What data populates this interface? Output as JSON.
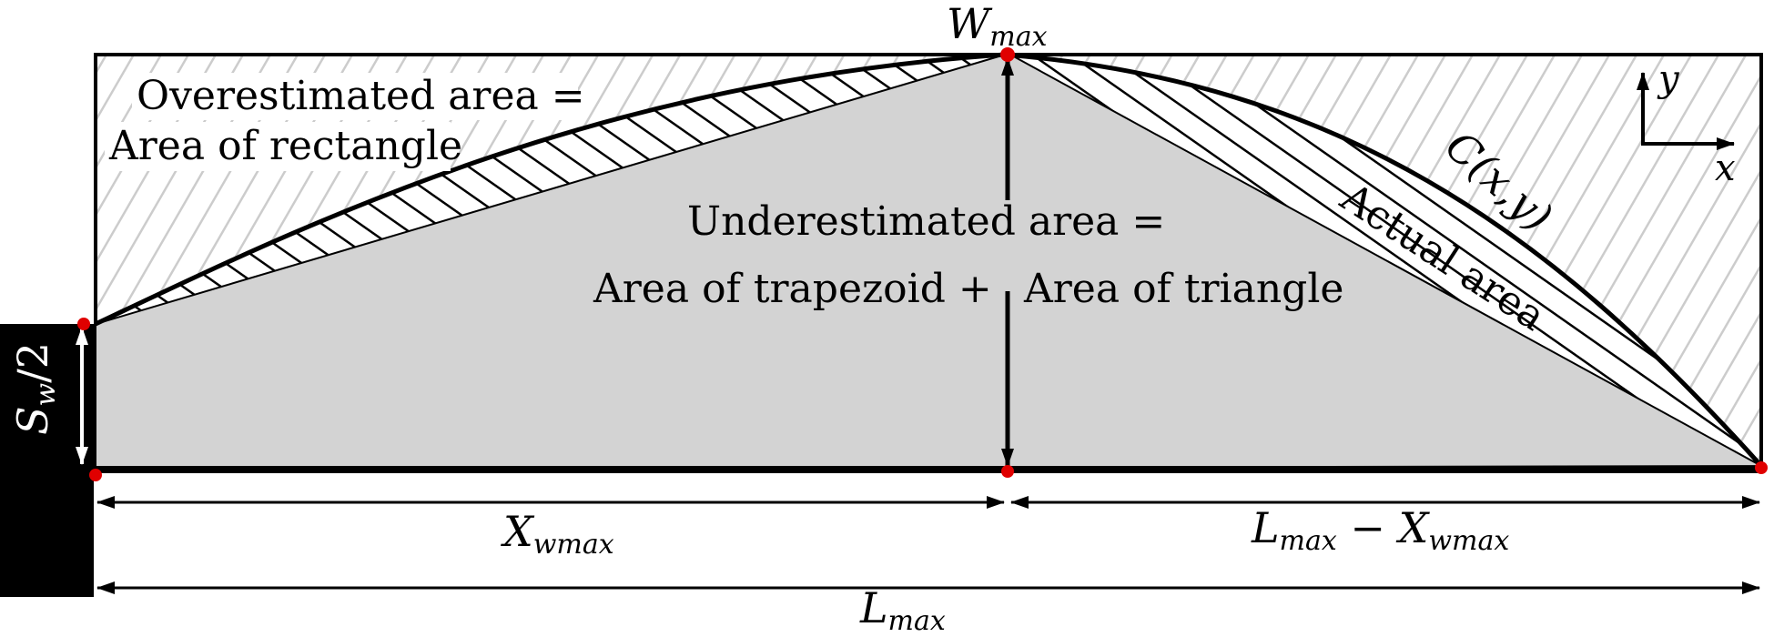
{
  "labels": {
    "overestimated_line1": "Overestimated area =",
    "overestimated_line2": "Area of rectangle",
    "underestimated_line1": "Underestimated area =",
    "underestimated_trapezoid": "Area of trapezoid +",
    "underestimated_triangle": "Area of triangle",
    "actual_area": "Actual area",
    "curve_label": "C(x,y)"
  },
  "symbols": {
    "w_max": {
      "base": "W",
      "sub": "max"
    },
    "s_w_half": {
      "base": "S",
      "sub": "w",
      "rest": "/2"
    },
    "x_wmax": {
      "base": "X",
      "sub": "wmax"
    },
    "l_minus_x": {
      "base1": "L",
      "sub1": "max",
      "op": " − ",
      "base2": "X",
      "sub2": "wmax"
    },
    "l_max": {
      "base": "L",
      "sub": "max"
    },
    "axis_x": "x",
    "axis_y": "y"
  },
  "colors": {
    "underestimate_fill": "#d3d3d3",
    "overestimate_hatch": "#cccccc",
    "actual_hatch": "#000000",
    "point_marker": "#e00000",
    "wall_fill": "#000000"
  }
}
